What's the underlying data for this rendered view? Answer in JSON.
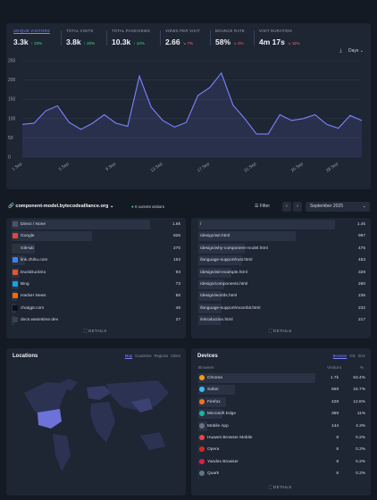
{
  "stats": [
    {
      "label": "Unique visitors",
      "value": "3.3k",
      "change": "23%",
      "dir": "up"
    },
    {
      "label": "Total visits",
      "value": "3.8k",
      "change": "20%",
      "dir": "up"
    },
    {
      "label": "Total pageviews",
      "value": "10.3k",
      "change": "12%",
      "dir": "up"
    },
    {
      "label": "Views per visit",
      "value": "2.66",
      "change": "7%",
      "dir": "down"
    },
    {
      "label": "Bounce rate",
      "value": "58%",
      "change": "2%",
      "dir": "down"
    },
    {
      "label": "Visit duration",
      "value": "4m 17s",
      "change": "11%",
      "dir": "down"
    }
  ],
  "interval_label": "Days",
  "chart_data": {
    "type": "line",
    "x": [
      "1 Sep",
      "2 Sep",
      "3 Sep",
      "4 Sep",
      "5 Sep",
      "6 Sep",
      "7 Sep",
      "8 Sep",
      "9 Sep",
      "10 Sep",
      "11 Sep",
      "12 Sep",
      "13 Sep",
      "14 Sep",
      "15 Sep",
      "16 Sep",
      "17 Sep",
      "18 Sep",
      "19 Sep",
      "20 Sep",
      "21 Sep",
      "22 Sep",
      "23 Sep",
      "24 Sep",
      "25 Sep",
      "26 Sep",
      "27 Sep",
      "28 Sep",
      "29 Sep",
      "30 Sep"
    ],
    "xticks": [
      "1 Sep",
      "5 Sep",
      "9 Sep",
      "13 Sep",
      "17 Sep",
      "21 Sep",
      "25 Sep",
      "28 Sep"
    ],
    "series": [
      {
        "values": [
          85,
          88,
          120,
          133,
          90,
          72,
          88,
          110,
          88,
          80,
          210,
          130,
          95,
          78,
          90,
          160,
          180,
          218,
          135,
          100,
          60,
          60,
          110,
          95,
          100,
          110,
          85,
          75,
          108,
          95
        ]
      }
    ],
    "ylim": [
      0,
      250
    ],
    "yticks": [
      0,
      50,
      100,
      150,
      200,
      250
    ],
    "color": "#7c84ff"
  },
  "site": "component-model.bytecodealliance.org",
  "current_visitors": "0 current visitors",
  "filter_label": "Filter",
  "period": "September 2025",
  "sources": [
    {
      "name": "Direct / None",
      "count": "1.6k",
      "pct": 100,
      "icon": "link-icon",
      "color": "#4b5563"
    },
    {
      "name": "Google",
      "count": "926",
      "pct": 58,
      "icon": "google-icon",
      "color": "#ea4335"
    },
    {
      "name": "GitHub",
      "count": "270",
      "pct": 17,
      "icon": "github-icon",
      "color": "#333"
    },
    {
      "name": "link.zhihu.com",
      "count": "153",
      "pct": 10,
      "icon": "globe-icon",
      "color": "#3b82f6"
    },
    {
      "name": "DuckDuckGo",
      "count": "93",
      "pct": 6,
      "icon": "duckduckgo-icon",
      "color": "#de5833"
    },
    {
      "name": "Bing",
      "count": "73",
      "pct": 5,
      "icon": "bing-icon",
      "color": "#0ea5e9"
    },
    {
      "name": "Hacker News",
      "count": "56",
      "pct": 4,
      "icon": "hackernews-icon",
      "color": "#ff6600"
    },
    {
      "name": "chatgpt.com",
      "count": "48",
      "pct": 3,
      "icon": "chatgpt-icon",
      "color": "#111"
    },
    {
      "name": "docs.wasmtime.dev",
      "count": "27",
      "pct": 2,
      "icon": "globe-icon",
      "color": "#374151"
    }
  ],
  "pages": [
    {
      "name": "/",
      "count": "1.4k",
      "pct": 100
    },
    {
      "name": "/design/wit.html",
      "count": "997",
      "pct": 71
    },
    {
      "name": "/design/why-component-model.html",
      "count": "475",
      "pct": 34
    },
    {
      "name": "/language-support/rust.html",
      "count": "453",
      "pct": 32
    },
    {
      "name": "/design/wit-example.html",
      "count": "329",
      "pct": 24
    },
    {
      "name": "/design/components.html",
      "count": "260",
      "pct": 19
    },
    {
      "name": "/design/worlds.html",
      "count": "236",
      "pct": 17
    },
    {
      "name": "/language-support/moonbit.html",
      "count": "232",
      "pct": 17
    },
    {
      "name": "/introduction.html",
      "count": "217",
      "pct": 16
    }
  ],
  "details_label": "DETAILS",
  "locations": {
    "title": "Locations",
    "tabs": [
      "Map",
      "Countries",
      "Regions",
      "Cities"
    ]
  },
  "devices": {
    "title": "Devices",
    "tabs": [
      "Browser",
      "OS",
      "Size"
    ],
    "col_browser": "Browser",
    "col_visitors": "Visitors",
    "col_pct": "%",
    "rows": [
      {
        "name": "Chrome",
        "count": "1.7k",
        "share": "53.4%",
        "pct": 100,
        "color": "#f59e0b"
      },
      {
        "name": "Safari",
        "count": "559",
        "share": "16.7%",
        "pct": 31,
        "color": "#38bdf8"
      },
      {
        "name": "Firefox",
        "count": "428",
        "share": "12.8%",
        "pct": 24,
        "color": "#f97316"
      },
      {
        "name": "Microsoft Edge",
        "count": "369",
        "share": "11%",
        "pct": 21,
        "color": "#14b8a6"
      },
      {
        "name": "Mobile App",
        "count": "144",
        "share": "4.3%",
        "pct": 8,
        "color": "#6b7280"
      },
      {
        "name": "Huawei Browser Mobile",
        "count": "8",
        "share": "0.2%",
        "pct": 1,
        "color": "#ef4444"
      },
      {
        "name": "Opera",
        "count": "8",
        "share": "0.2%",
        "pct": 1,
        "color": "#dc2626"
      },
      {
        "name": "Yandex Browser",
        "count": "8",
        "share": "0.2%",
        "pct": 1,
        "color": "#e11d48"
      },
      {
        "name": "Quark",
        "count": "6",
        "share": "0.2%",
        "pct": 1,
        "color": "#64748b"
      }
    ]
  }
}
